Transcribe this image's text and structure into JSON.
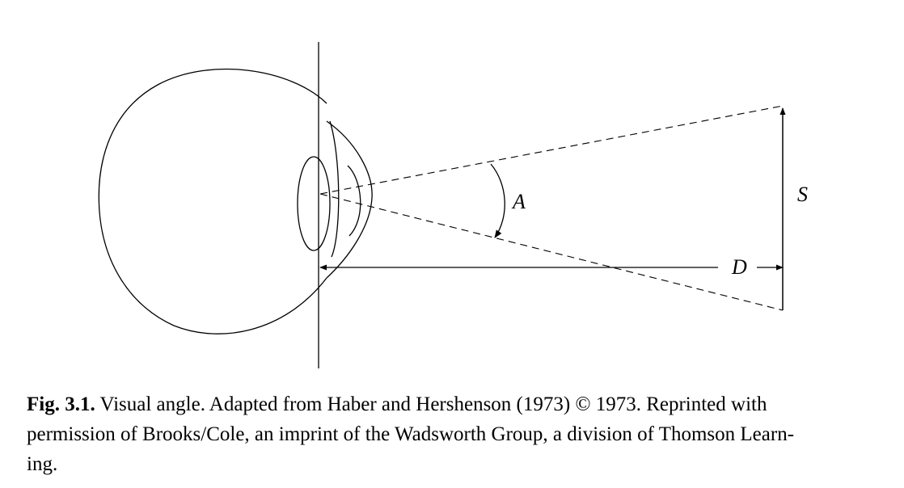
{
  "diagram": {
    "labels": {
      "angle": "A",
      "size": "S",
      "distance": "D"
    }
  },
  "caption": {
    "figure_label": "Fig. 3.1.",
    "text_line1": "Visual angle. Adapted from Haber and Hershenson (1973) © 1973. Reprinted with",
    "text_line2": "permission of Brooks/Cole, an imprint of the Wadsworth Group, a division of Thomson Learn-",
    "text_line3": "ing."
  }
}
